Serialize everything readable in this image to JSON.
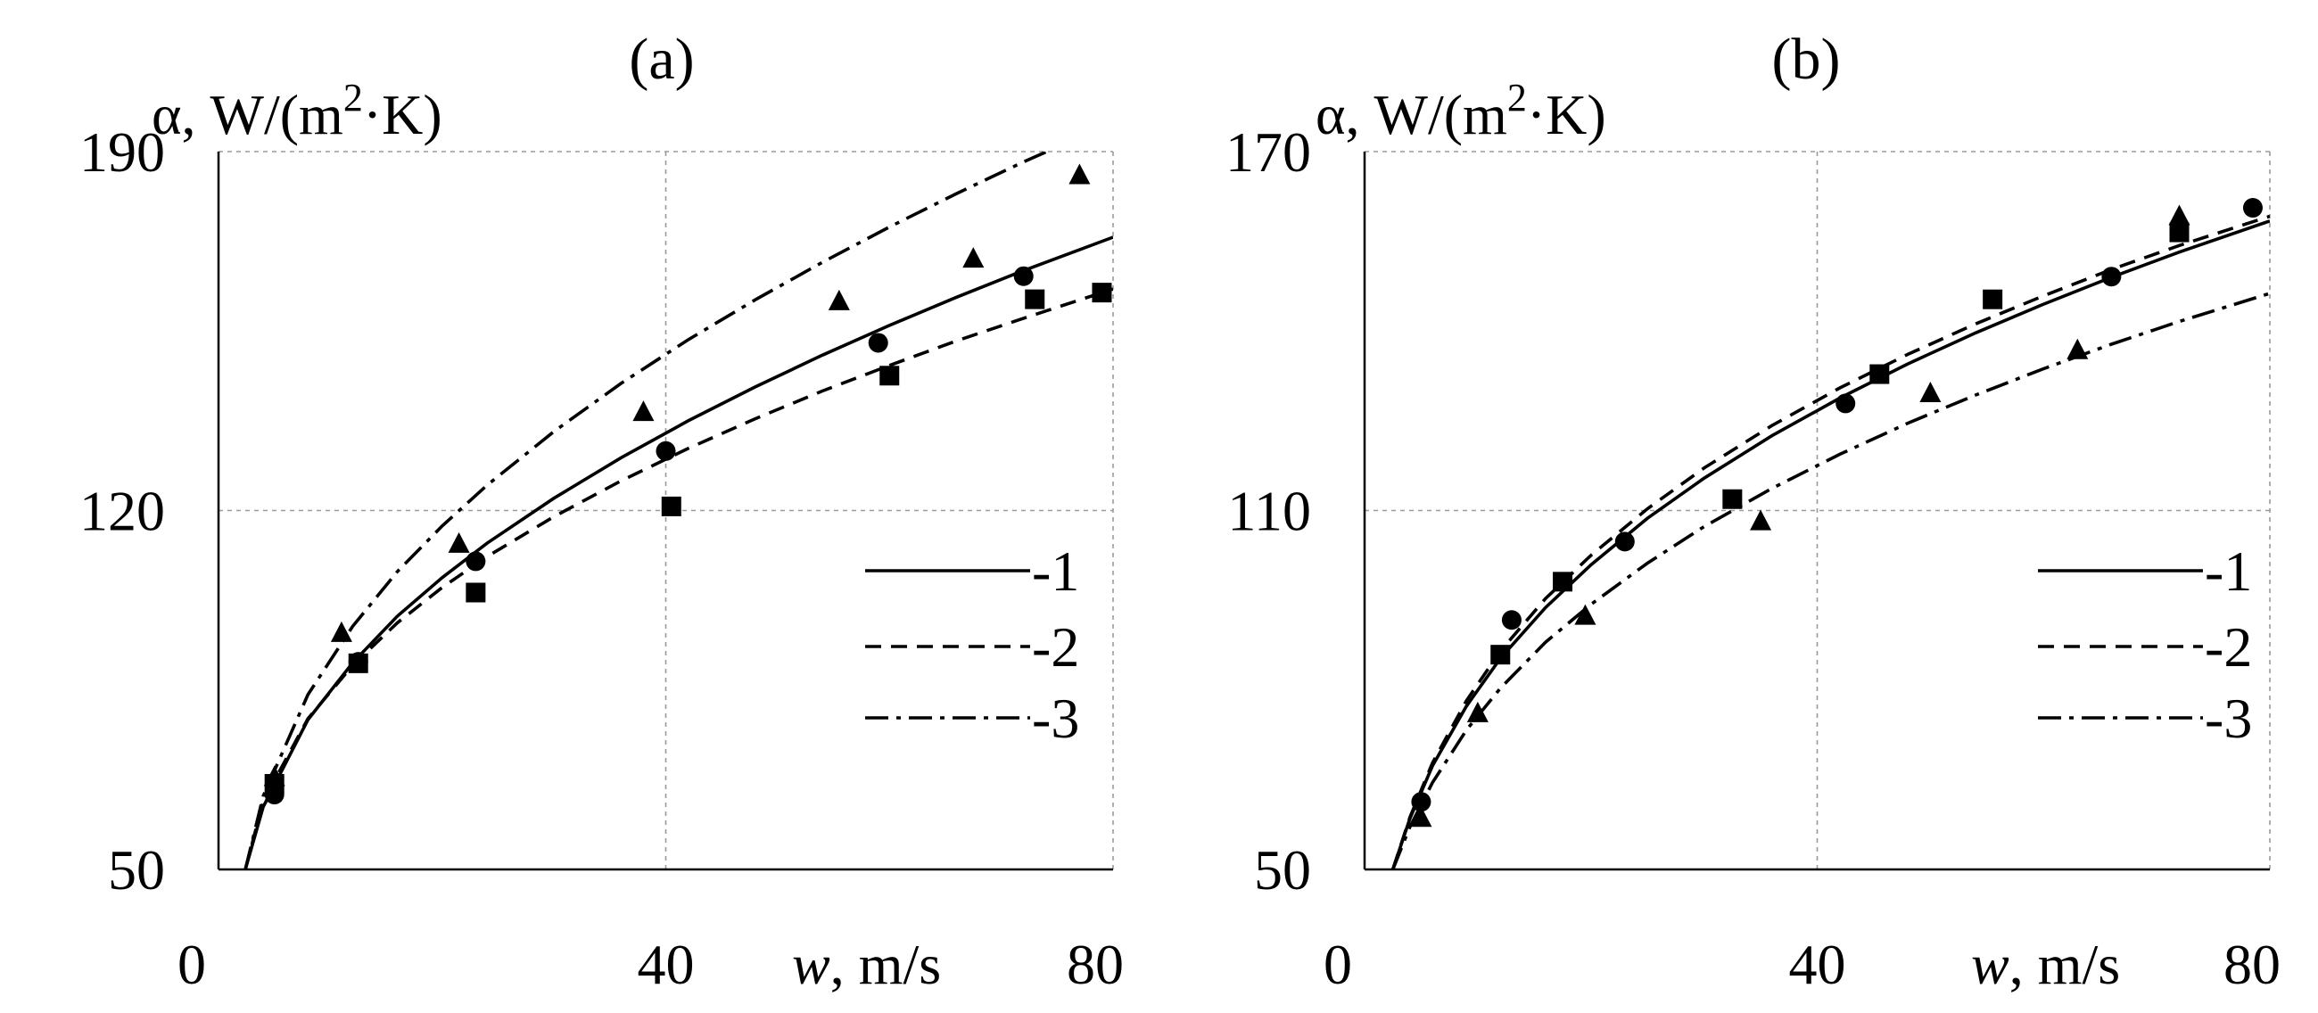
{
  "chart_data": [
    {
      "type": "scatter",
      "panel_label": "(a)",
      "ylabel_prefix": "α, W/(m",
      "ylabel_exp": "2",
      "ylabel_suffix": "·K)",
      "xlabel_var": "w",
      "xlabel_unit": ", m/s",
      "xlim": [
        0,
        80
      ],
      "ylim": [
        50,
        190
      ],
      "xticks": [
        "0",
        "40",
        "80"
      ],
      "yticks": [
        "50",
        "120",
        "190"
      ],
      "grid": true,
      "legend_position": "right-middle",
      "series": [
        {
          "name": "1",
          "line_style": "solid",
          "marker": "circle",
          "curve": {
            "x": [
              2.4,
              4,
              8,
              12,
              16,
              20,
              24,
              30,
              36,
              42,
              48,
              54,
              60,
              66,
              72,
              80
            ],
            "y": [
              50,
              62.2,
              79.2,
              90.3,
              99.4,
              106.9,
              113.6,
              122.4,
              130.3,
              137.5,
              144.1,
              150.3,
              156.1,
              161.6,
              166.8,
              173.3
            ]
          },
          "points": {
            "x": [
              5,
              12.5,
              23,
              40,
              59,
              72
            ],
            "y": [
              64.6,
              90.5,
              110.1,
              131.6,
              152.7,
              165.7
            ]
          }
        },
        {
          "name": "2",
          "line_style": "dashed",
          "marker": "square",
          "curve": {
            "x": [
              2.4,
              4,
              8,
              12,
              16,
              20,
              24,
              30,
              36,
              42,
              48,
              54,
              60,
              66,
              72,
              80
            ],
            "y": [
              50,
              63.3,
              79.4,
              89.8,
              98.1,
              105.0,
              111.0,
              118.8,
              125.8,
              132.1,
              137.9,
              143.3,
              148.3,
              153.1,
              157.5,
              163.2
            ]
          },
          "points": {
            "x": [
              5,
              12.5,
              23,
              40.5,
              60,
              73,
              79
            ],
            "y": [
              66.7,
              90.2,
              104.0,
              120.8,
              146.3,
              161.2,
              162.5
            ]
          }
        },
        {
          "name": "3",
          "line_style": "dash-dot",
          "marker": "triangle",
          "curve": {
            "x": [
              2.4,
              4,
              8,
              12,
              16,
              20,
              24,
              30,
              36,
              42,
              48,
              54,
              60,
              66,
              72,
              80
            ],
            "y": [
              50,
              64.3,
              84.1,
              97.4,
              108.1,
              117.0,
              124.9,
              135.4,
              144.8,
              153.3,
              161.1,
              168.4,
              175.3,
              181.8,
              188.0,
              195.7
            ]
          },
          "points": {
            "x": [
              5,
              11,
              21.5,
              38,
              55.5,
              67.5,
              77
            ],
            "y": [
              68.0,
              96.1,
              113.5,
              139.2,
              160.8,
              169.1,
              185.4
            ]
          }
        }
      ]
    },
    {
      "type": "scatter",
      "panel_label": "(b)",
      "ylabel_prefix": "α, W/(m",
      "ylabel_exp": "2",
      "ylabel_suffix": "·K)",
      "xlabel_var": "w",
      "xlabel_unit": ", m/s",
      "xlim": [
        0,
        80
      ],
      "ylim": [
        50,
        170
      ],
      "xticks": [
        "0",
        "40",
        "80"
      ],
      "yticks": [
        "50",
        "110",
        "170"
      ],
      "grid": true,
      "legend_position": "right-middle",
      "series": [
        {
          "name": "1",
          "line_style": "solid",
          "marker": "circle",
          "curve": {
            "x": [
              2.5,
              4,
              6,
              9,
              12,
              16,
              20,
              25,
              30,
              36,
              42,
              48,
              54,
              60,
              66,
              72,
              80
            ],
            "y": [
              50,
              58.5,
              67.3,
              77.3,
              85.3,
              93.8,
              100.9,
              108.7,
              115.4,
              122.5,
              128.8,
              134.5,
              139.7,
              144.5,
              149.0,
              153.2,
              158.4
            ]
          },
          "points": {
            "x": [
              5,
              13,
              23,
              42.5,
              66,
              78.5
            ],
            "y": [
              61.3,
              91.7,
              104.8,
              127.9,
              149.1,
              160.6
            ]
          }
        },
        {
          "name": "2",
          "line_style": "dashed",
          "marker": "square",
          "curve": {
            "x": [
              2.5,
              4,
              6,
              9,
              12,
              16,
              20,
              25,
              30,
              36,
              42,
              48,
              54,
              60,
              66,
              72,
              80
            ],
            "y": [
              50,
              58.7,
              67.8,
              78.2,
              86.5,
              95.3,
              102.5,
              110.3,
              117.1,
              124.2,
              130.5,
              136.1,
              141.2,
              145.9,
              150.3,
              154.3,
              159.2
            ]
          },
          "points": {
            "x": [
              12,
              17.5,
              32.5,
              45.5,
              55.5,
              72
            ],
            "y": [
              85.9,
              98.1,
              111.9,
              132.8,
              145.3,
              156.5
            ]
          }
        },
        {
          "name": "3",
          "line_style": "dash-dot",
          "marker": "triangle",
          "curve": {
            "x": [
              2.5,
              4,
              6,
              9,
              12,
              16,
              20,
              25,
              30,
              36,
              42,
              48,
              54,
              60,
              66,
              72,
              80
            ],
            "y": [
              50,
              57.1,
              64.5,
              73.3,
              80.3,
              88.0,
              94.3,
              101.2,
              107.3,
              113.7,
              119.4,
              124.6,
              129.3,
              133.7,
              137.8,
              141.6,
              146.3
            ]
          },
          "points": {
            "x": [
              5,
              10,
              19.5,
              35,
              50,
              63,
              72
            ],
            "y": [
              58.6,
              76.1,
              92.4,
              108.2,
              129.6,
              136.8,
              159.2
            ]
          }
        }
      ]
    }
  ]
}
